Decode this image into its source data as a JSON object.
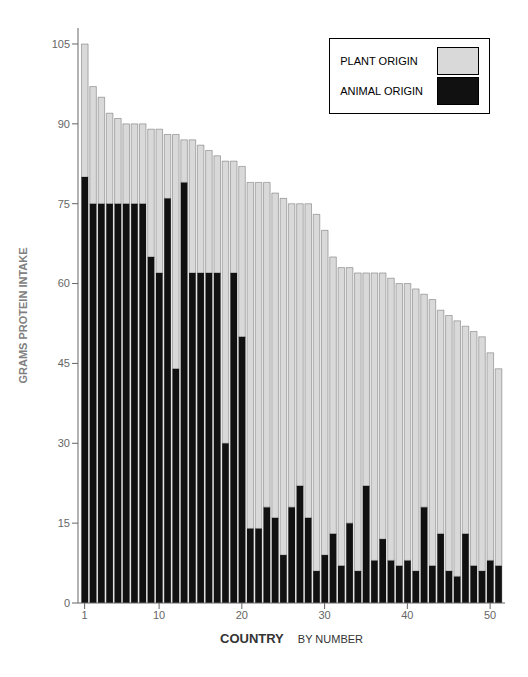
{
  "chart_data": {
    "type": "bar",
    "stacked": true,
    "ylabel": "GRAMS PROTEIN INTAKE",
    "xlabel": "COUNTRY",
    "xlabel_sub": "BY NUMBER",
    "x": [
      1,
      2,
      3,
      4,
      5,
      6,
      7,
      8,
      9,
      10,
      11,
      12,
      13,
      14,
      15,
      16,
      17,
      18,
      19,
      20,
      21,
      22,
      23,
      24,
      25,
      26,
      27,
      28,
      29,
      30,
      31,
      32,
      33,
      34,
      35,
      36,
      37,
      38,
      39,
      40,
      41,
      42,
      43,
      44,
      45,
      46,
      47,
      48,
      49,
      50,
      51
    ],
    "series": [
      {
        "name": "ANIMAL ORIGIN",
        "color": "#111111",
        "values": [
          80,
          75,
          75,
          75,
          75,
          75,
          75,
          75,
          65,
          62,
          76,
          44,
          79,
          62,
          62,
          62,
          62,
          30,
          62,
          50,
          14,
          14,
          18,
          16,
          9,
          18,
          22,
          16,
          6,
          9,
          13,
          7,
          15,
          6,
          22,
          8,
          12,
          8,
          7,
          8,
          6,
          18,
          7,
          13,
          6,
          5,
          13,
          7,
          6,
          8,
          7
        ]
      },
      {
        "name": "PLANT ORIGIN",
        "color": "#d9d9d9",
        "values": [
          25,
          22,
          20,
          17,
          16,
          15,
          15,
          15,
          24,
          27,
          12,
          44,
          8,
          25,
          24,
          23,
          22,
          53,
          21,
          32,
          65,
          65,
          61,
          61,
          67,
          57,
          53,
          59,
          67,
          61,
          52,
          56,
          48,
          56,
          40,
          54,
          50,
          53,
          53,
          52,
          53,
          40,
          50,
          42,
          48,
          48,
          39,
          44,
          44,
          39,
          37
        ]
      }
    ],
    "xlim": [
      0.2,
      51.8
    ],
    "xticks": [
      1,
      10,
      20,
      30,
      40,
      50
    ],
    "ylim": [
      0,
      108
    ],
    "yticks": [
      0,
      15,
      30,
      45,
      60,
      75,
      90,
      105
    ],
    "grid": false,
    "legend": "upper right"
  }
}
